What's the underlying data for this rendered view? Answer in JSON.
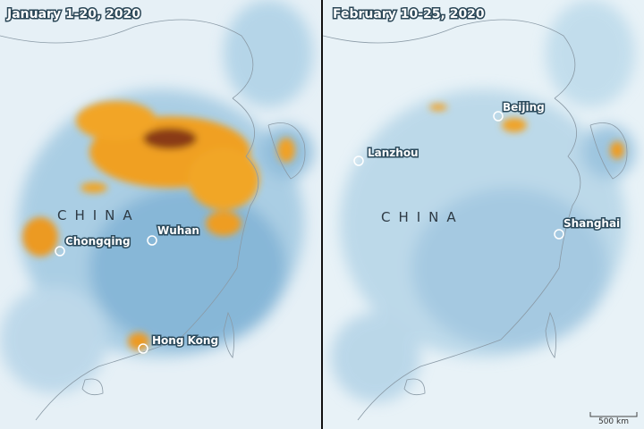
{
  "panels": [
    {
      "title": "January 1-20, 2020",
      "country_label": "CHINA",
      "cities": [
        "Chongqing",
        "Wuhan",
        "Hong Kong"
      ]
    },
    {
      "title": "February 10-25, 2020",
      "country_label": "CHINA",
      "cities": [
        "Beijing",
        "Lanzhou",
        "Shanghai"
      ]
    }
  ],
  "scale_bar": "500 km"
}
